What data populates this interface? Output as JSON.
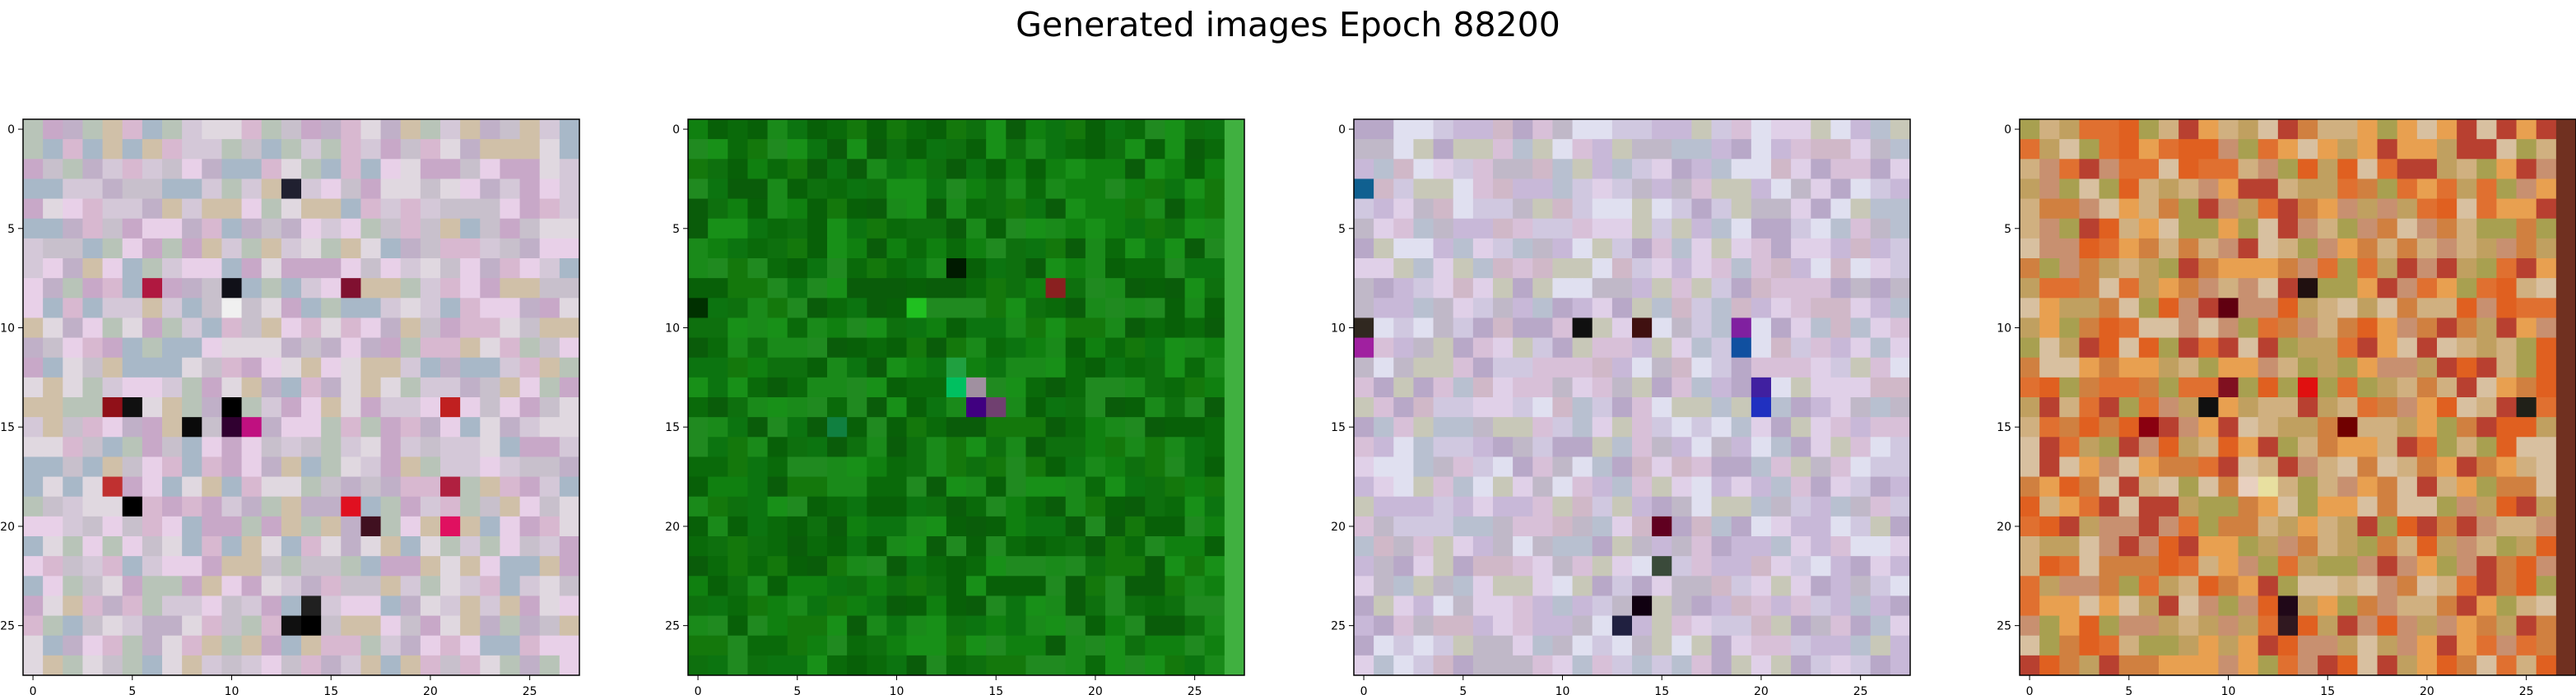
{
  "title": "Generated images Epoch 88200",
  "chart_data": [
    {
      "type": "heatmap",
      "rows": 28,
      "cols": 28,
      "xticks": [
        0,
        5,
        10,
        15,
        20,
        25
      ],
      "yticks": [
        0,
        5,
        10,
        15,
        20,
        25
      ],
      "xlim": [
        -0.5,
        27.5
      ],
      "ylim": [
        27.5,
        -0.5
      ],
      "palette": [
        "#c8c0cc",
        "#d4c8d8",
        "#b8c4b8",
        "#d8b8d0",
        "#c0b0c8",
        "#e0d8e0",
        "#a8b8c8",
        "#d0c0a8",
        "#c8a8c8",
        "#e8d0e8"
      ],
      "accents": [
        {
          "r": 3,
          "c": 13,
          "color": "#202030"
        },
        {
          "r": 8,
          "c": 10,
          "color": "#101018"
        },
        {
          "r": 8,
          "c": 6,
          "color": "#b01840"
        },
        {
          "r": 8,
          "c": 16,
          "color": "#801030"
        },
        {
          "r": 9,
          "c": 10,
          "color": "#f0f0f0"
        },
        {
          "r": 14,
          "c": 5,
          "color": "#101010"
        },
        {
          "r": 14,
          "c": 4,
          "color": "#901018"
        },
        {
          "r": 14,
          "c": 10,
          "color": "#000000"
        },
        {
          "r": 14,
          "c": 21,
          "color": "#c02020"
        },
        {
          "r": 15,
          "c": 8,
          "color": "#0a0a0a"
        },
        {
          "r": 15,
          "c": 10,
          "color": "#300030"
        },
        {
          "r": 15,
          "c": 11,
          "color": "#c01080"
        },
        {
          "r": 18,
          "c": 4,
          "color": "#c03030"
        },
        {
          "r": 18,
          "c": 21,
          "color": "#b02040"
        },
        {
          "r": 19,
          "c": 5,
          "color": "#000000"
        },
        {
          "r": 19,
          "c": 16,
          "color": "#e01020"
        },
        {
          "r": 20,
          "c": 17,
          "color": "#401020"
        },
        {
          "r": 20,
          "c": 21,
          "color": "#e01060"
        },
        {
          "r": 25,
          "c": 13,
          "color": "#101010"
        },
        {
          "r": 25,
          "c": 14,
          "color": "#000000"
        },
        {
          "r": 24,
          "c": 14,
          "color": "#202020"
        }
      ]
    },
    {
      "type": "heatmap",
      "rows": 28,
      "cols": 28,
      "xticks": [
        0,
        5,
        10,
        15,
        20,
        25
      ],
      "yticks": [
        0,
        5,
        10,
        15,
        20,
        25
      ],
      "xlim": [
        -0.5,
        27.5
      ],
      "ylim": [
        27.5,
        -0.5
      ],
      "palette": [
        "#0a6a0a",
        "#108010",
        "#0c7410",
        "#1a8a1a",
        "#086008",
        "#14780c",
        "#208a20",
        "#0a5c0a",
        "#189018",
        "#0e700e"
      ],
      "accents": [
        {
          "r": 7,
          "c": 13,
          "color": "#001a00"
        },
        {
          "r": 9,
          "c": 0,
          "color": "#003000"
        },
        {
          "r": 12,
          "c": 13,
          "color": "#20a040"
        },
        {
          "r": 13,
          "c": 13,
          "color": "#00c060"
        },
        {
          "r": 13,
          "c": 14,
          "color": "#a090a0"
        },
        {
          "r": 14,
          "c": 14,
          "color": "#400080"
        },
        {
          "r": 8,
          "c": 18,
          "color": "#8a2020"
        },
        {
          "r": 9,
          "c": 11,
          "color": "#20c020"
        },
        {
          "r": 15,
          "c": 7,
          "color": "#108040"
        },
        {
          "r": 14,
          "c": 15,
          "color": "#704070"
        }
      ],
      "edge_color": "#40b040"
    },
    {
      "type": "heatmap",
      "rows": 28,
      "cols": 28,
      "xticks": [
        0,
        5,
        10,
        15,
        20,
        25
      ],
      "yticks": [
        0,
        5,
        10,
        15,
        20,
        25
      ],
      "xlim": [
        -0.5,
        27.5
      ],
      "ylim": [
        27.5,
        -0.5
      ],
      "palette": [
        "#d0c8e0",
        "#c8b8d8",
        "#e0d0e8",
        "#b8c0d0",
        "#d8c0d8",
        "#c0b8c8",
        "#e0e0f0",
        "#c8c8b8",
        "#d0b8c8",
        "#b8a8c8"
      ],
      "accents": [
        {
          "r": 3,
          "c": 0,
          "color": "#106090"
        },
        {
          "r": 10,
          "c": 0,
          "color": "#302820"
        },
        {
          "r": 10,
          "c": 11,
          "color": "#101010"
        },
        {
          "r": 10,
          "c": 14,
          "color": "#401010"
        },
        {
          "r": 10,
          "c": 19,
          "color": "#8020a0"
        },
        {
          "r": 11,
          "c": 0,
          "color": "#a020a0"
        },
        {
          "r": 11,
          "c": 19,
          "color": "#1050a0"
        },
        {
          "r": 13,
          "c": 20,
          "color": "#4020a0"
        },
        {
          "r": 14,
          "c": 20,
          "color": "#2030c0"
        },
        {
          "r": 20,
          "c": 15,
          "color": "#600020"
        },
        {
          "r": 24,
          "c": 14,
          "color": "#100010"
        },
        {
          "r": 25,
          "c": 13,
          "color": "#202040"
        },
        {
          "r": 22,
          "c": 15,
          "color": "#3a4a3a"
        }
      ]
    },
    {
      "type": "heatmap",
      "rows": 28,
      "cols": 28,
      "xticks": [
        0,
        5,
        10,
        15,
        20,
        25
      ],
      "yticks": [
        0,
        5,
        10,
        15,
        20,
        25
      ],
      "xlim": [
        -0.5,
        27.5
      ],
      "ylim": [
        27.5,
        -0.5
      ],
      "palette": [
        "#e06020",
        "#d08040",
        "#c0a060",
        "#e8a050",
        "#b84030",
        "#d0b080",
        "#c89070",
        "#e07030",
        "#a8a050",
        "#d8c0a0"
      ],
      "accents": [
        {
          "r": 8,
          "c": 14,
          "color": "#201010"
        },
        {
          "r": 9,
          "c": 10,
          "color": "#600010"
        },
        {
          "r": 13,
          "c": 10,
          "color": "#801020"
        },
        {
          "r": 14,
          "c": 9,
          "color": "#101010"
        },
        {
          "r": 14,
          "c": 25,
          "color": "#202018"
        },
        {
          "r": 15,
          "c": 6,
          "color": "#8a0010"
        },
        {
          "r": 15,
          "c": 16,
          "color": "#700000"
        },
        {
          "r": 18,
          "c": 11,
          "color": "#e8d0c0"
        },
        {
          "r": 18,
          "c": 12,
          "color": "#e8e0a0"
        },
        {
          "r": 24,
          "c": 13,
          "color": "#200818"
        },
        {
          "r": 25,
          "c": 13,
          "color": "#301820"
        },
        {
          "r": 13,
          "c": 14,
          "color": "#e01010"
        }
      ],
      "edge_color": "#703020"
    }
  ]
}
